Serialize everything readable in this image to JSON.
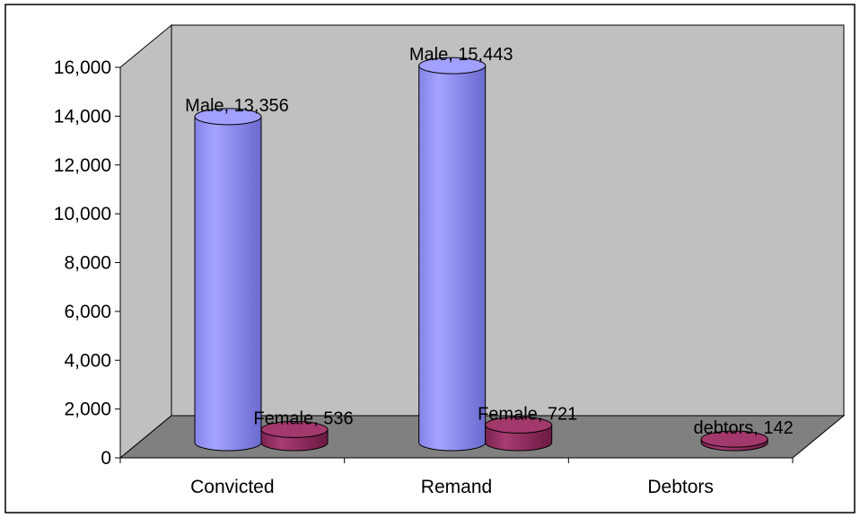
{
  "chart_data": {
    "type": "bar",
    "style": "3d-cylinder",
    "categories": [
      "Convicted",
      "Remand",
      "Debtors"
    ],
    "bars": [
      {
        "category": "Convicted",
        "series": "Male",
        "value": 13356,
        "label": "Male, 13,356",
        "color": "#9999ff"
      },
      {
        "category": "Convicted",
        "series": "Female",
        "value": 536,
        "label": "Female, 536",
        "color": "#993366"
      },
      {
        "category": "Remand",
        "series": "Male",
        "value": 15443,
        "label": "Male, 15,443",
        "color": "#9999ff"
      },
      {
        "category": "Remand",
        "series": "Female",
        "value": 721,
        "label": "Female, 721",
        "color": "#993366"
      },
      {
        "category": "Debtors",
        "series": "debtors",
        "value": 142,
        "label": "debtors, 142",
        "color": "#993366"
      }
    ],
    "y_ticks": [
      "0",
      "2,000",
      "4,000",
      "6,000",
      "8,000",
      "10,000",
      "12,000",
      "14,000",
      "16,000"
    ],
    "ylim": [
      0,
      16000
    ],
    "grid": false,
    "legend": "none",
    "colors": {
      "back_wall": "#c0c0c0",
      "floor": "#808080",
      "male": "#9999ff",
      "female": "#993366"
    }
  }
}
